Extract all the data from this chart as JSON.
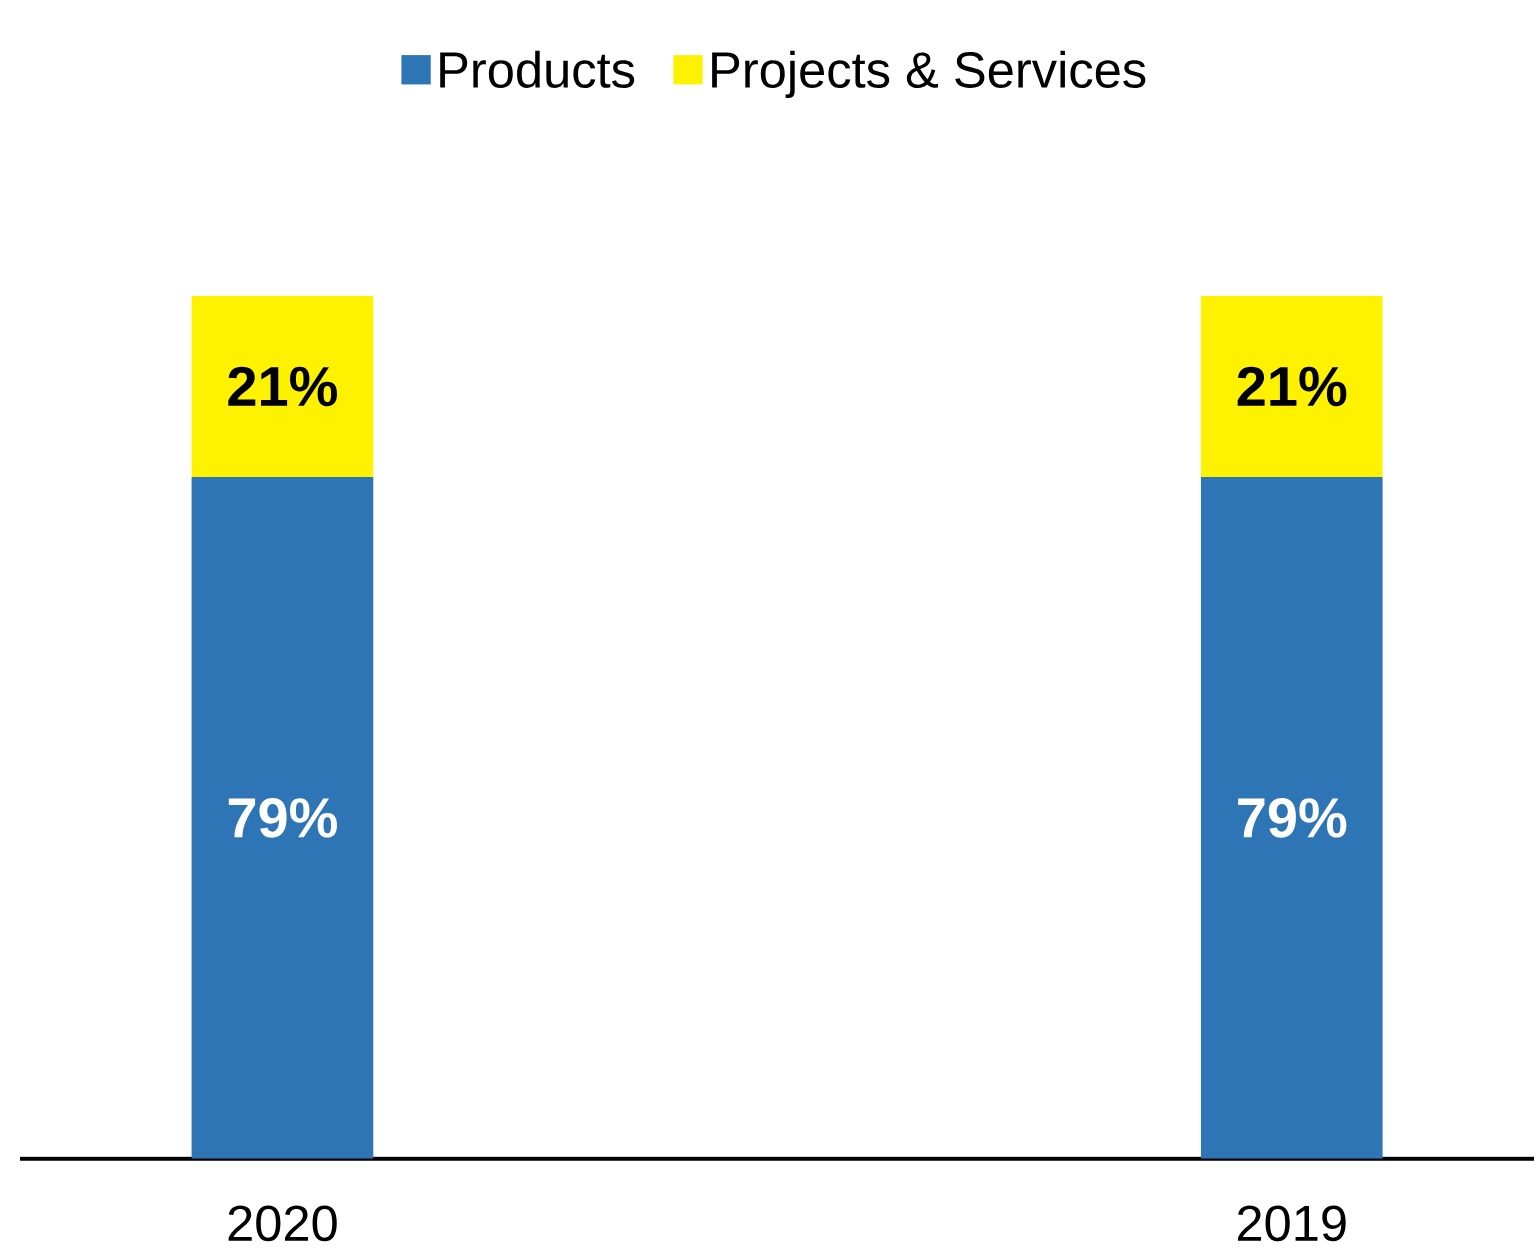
{
  "chart_data": {
    "type": "bar",
    "stacked": true,
    "categories": [
      "2020",
      "2019"
    ],
    "legend": "top",
    "series": [
      {
        "name": "Products",
        "color": "#2e75b6",
        "values": [
          79,
          79
        ],
        "value_labels": [
          "79%",
          "79%"
        ]
      },
      {
        "name": "Projects & Services",
        "color": "#fff200",
        "values": [
          21,
          21
        ],
        "value_labels": [
          "21%",
          "21%"
        ]
      }
    ]
  }
}
